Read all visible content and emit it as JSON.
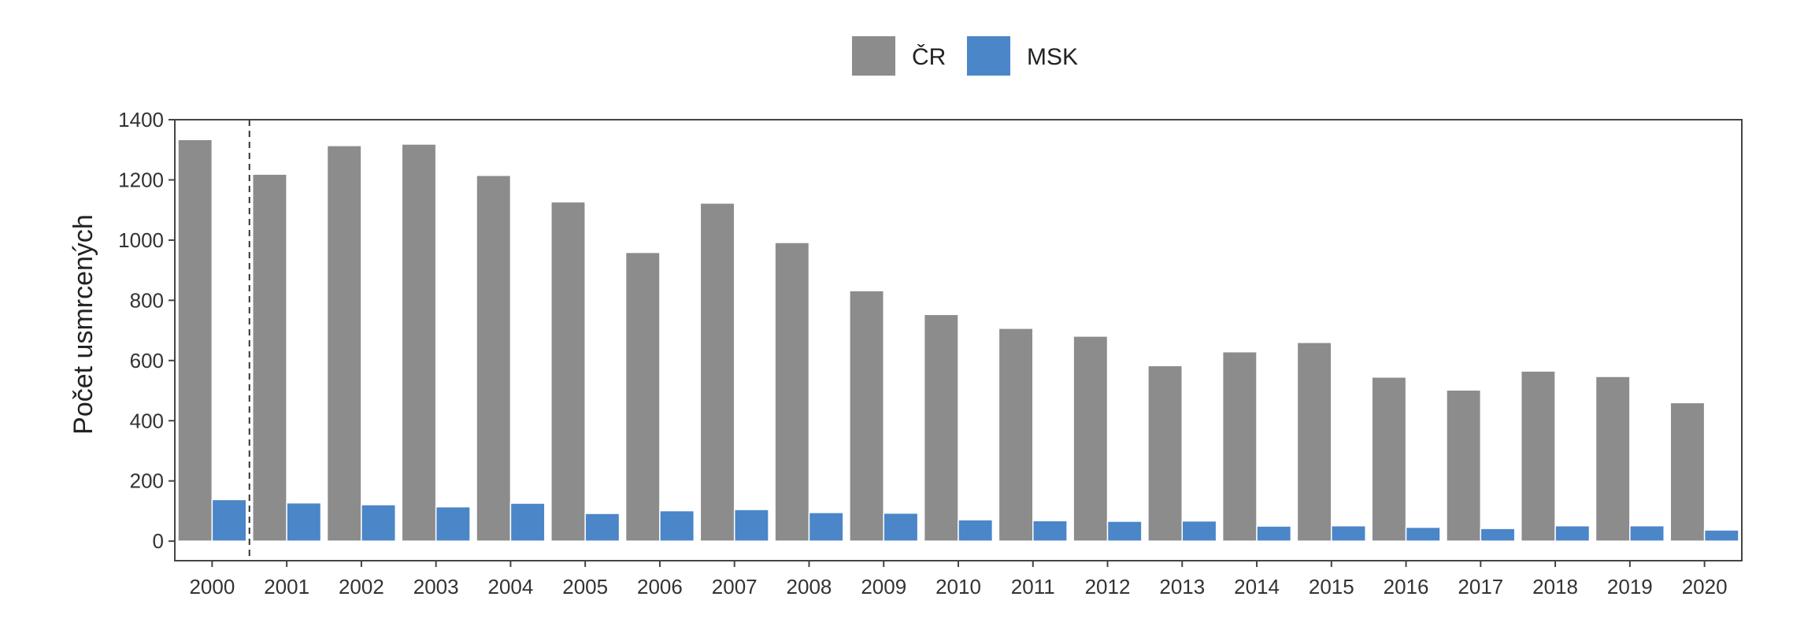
{
  "chart_data": {
    "type": "bar",
    "categories": [
      "2000",
      "2001",
      "2002",
      "2003",
      "2004",
      "2005",
      "2006",
      "2007",
      "2008",
      "2009",
      "2010",
      "2011",
      "2012",
      "2013",
      "2014",
      "2015",
      "2016",
      "2017",
      "2018",
      "2019",
      "2020"
    ],
    "series": [
      {
        "name": "ČR",
        "color": "#8c8c8c",
        "values": [
          1334,
          1219,
          1314,
          1319,
          1215,
          1127,
          959,
          1123,
          992,
          832,
          753,
          707,
          681,
          583,
          629,
          660,
          545,
          502,
          565,
          547,
          460
        ]
      },
      {
        "name": "MSK",
        "color": "#4a86c8",
        "values": [
          138,
          127,
          121,
          114,
          126,
          92,
          101,
          105,
          95,
          93,
          71,
          68,
          66,
          67,
          50,
          51,
          46,
          42,
          51,
          51,
          37
        ]
      }
    ],
    "title": "",
    "xlabel": "",
    "ylabel": "Počet usmrcených",
    "ylim": [
      -65,
      1400
    ],
    "yticks": [
      0,
      200,
      400,
      600,
      800,
      1000,
      1200,
      1400
    ],
    "legend_position": "top",
    "grid": false,
    "reference_line": {
      "type": "dashed-vertical",
      "between": [
        "2000",
        "2001"
      ]
    }
  }
}
